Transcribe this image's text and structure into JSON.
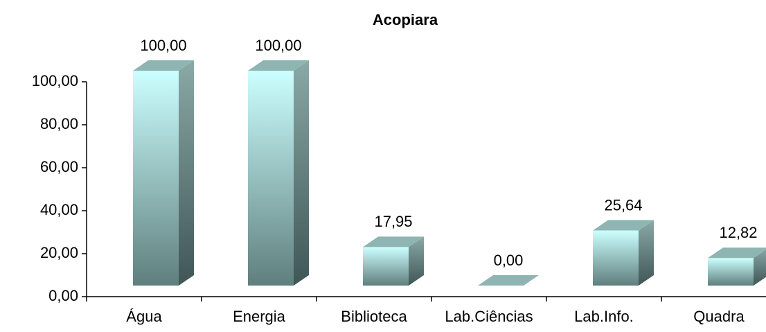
{
  "chart_data": {
    "type": "bar3d",
    "title": "Acopiara",
    "categories": [
      "Água",
      "Energia",
      "Biblioteca",
      "Lab.Ciências",
      "Lab.Info.",
      "Quadra"
    ],
    "values": [
      100,
      100,
      17.95,
      0,
      25.64,
      12.82
    ],
    "value_labels": [
      "100,00",
      "100,00",
      "17,95",
      "0,00",
      "25,64",
      "12,82"
    ],
    "ylim": [
      0,
      100
    ],
    "yticks": [
      {
        "value": 0,
        "label": "0,00"
      },
      {
        "value": 20,
        "label": "20,00"
      },
      {
        "value": 40,
        "label": "40,00"
      },
      {
        "value": 60,
        "label": "60,00"
      },
      {
        "value": 80,
        "label": "80,00"
      },
      {
        "value": 100,
        "label": "100,00"
      }
    ],
    "color": "#ccffff"
  }
}
